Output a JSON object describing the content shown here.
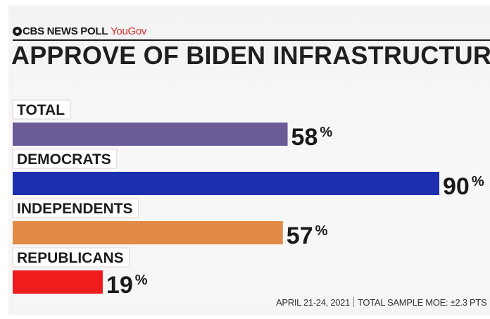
{
  "brand": {
    "outlet": "CBS NEWS POLL",
    "partner": "YouGov"
  },
  "title": "APPROVE OF BIDEN INFRASTRUCTURE PLAN",
  "footer": {
    "dates": "APRIL 21-24, 2021",
    "moe": "TOTAL SAMPLE MOE: ±2.3 PTS"
  },
  "chart_data": {
    "type": "bar",
    "orientation": "horizontal",
    "title": "APPROVE OF BIDEN INFRASTRUCTURE PLAN",
    "categories": [
      "TOTAL",
      "DEMOCRATS",
      "INDEPENDENTS",
      "REPUBLICANS"
    ],
    "values": [
      58,
      90,
      57,
      19
    ],
    "value_suffix": "%",
    "colors": [
      "#6b5b96",
      "#1c2fb0",
      "#e08a45",
      "#ee1c1c"
    ],
    "xlim": [
      0,
      90
    ],
    "grid": false,
    "legend": "none"
  }
}
